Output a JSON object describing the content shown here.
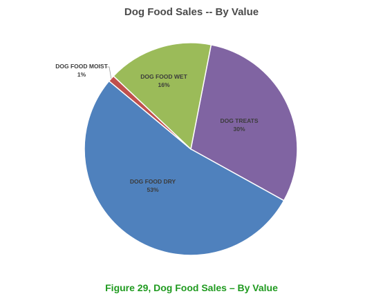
{
  "chart_data": {
    "type": "pie",
    "title": "Dog Food Sales -- By Value",
    "slices": [
      {
        "label": "DOG TREATS",
        "value": 30,
        "value_label": "30%",
        "color": "#8064a2"
      },
      {
        "label": "DOG FOOD DRY",
        "value": 53,
        "value_label": "53%",
        "color": "#4f81bd"
      },
      {
        "label": "DOG FOOD MOIST",
        "value": 1,
        "value_label": "1%",
        "color": "#c0504d"
      },
      {
        "label": "DOG FOOD WET",
        "value": 16,
        "value_label": "16%",
        "color": "#9bbb59"
      }
    ]
  },
  "caption": "Figure 29, Dog Food Sales – By Value"
}
